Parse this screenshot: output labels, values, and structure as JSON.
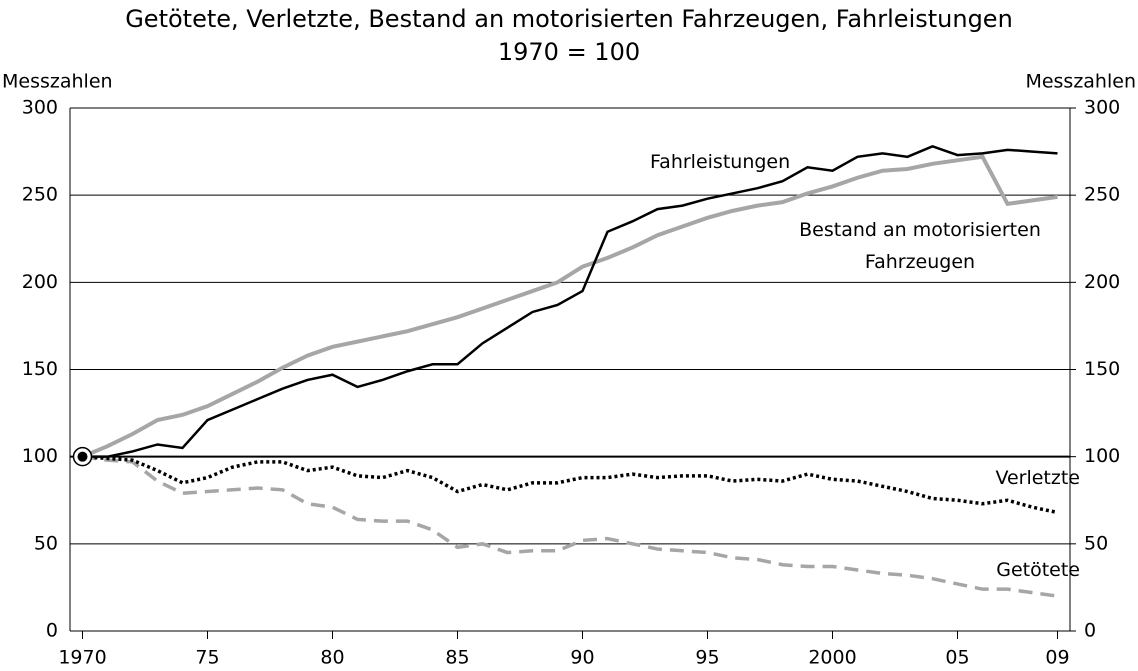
{
  "chart_data": {
    "type": "line",
    "title": "Getötete, Verletzte, Bestand an motorisierten Fahrzeugen, Fahrleistungen",
    "subtitle": "1970 = 100",
    "ylabel": "Messzahlen",
    "y2label": "Messzahlen",
    "x": [
      1970,
      1971,
      1972,
      1973,
      1974,
      1975,
      1976,
      1977,
      1978,
      1979,
      1980,
      1981,
      1982,
      1983,
      1984,
      1985,
      1986,
      1987,
      1988,
      1989,
      1990,
      1991,
      1992,
      1993,
      1994,
      1995,
      1996,
      1997,
      1998,
      1999,
      2000,
      2001,
      2002,
      2003,
      2004,
      2005,
      2006,
      2007,
      2008,
      2009
    ],
    "xlim": [
      1969.5,
      2009.5
    ],
    "xticks": [
      1970,
      {
        "value": 1975,
        "label": "75"
      },
      {
        "value": 1980,
        "label": "80"
      },
      {
        "value": 1985,
        "label": "85"
      },
      {
        "value": 1990,
        "label": "90"
      },
      {
        "value": 1995,
        "label": "95"
      },
      2000,
      {
        "value": 2005,
        "label": "05"
      },
      {
        "value": 2009,
        "label": "09"
      }
    ],
    "ylim": [
      0,
      300
    ],
    "yticks": [
      0,
      50,
      100,
      150,
      200,
      250,
      300
    ],
    "y2lim": [
      0,
      300
    ],
    "y2ticks": [
      0,
      50,
      100,
      150,
      200,
      250,
      300
    ],
    "grid": true,
    "series": [
      {
        "name": "Fahrleistungen",
        "color": "#000000",
        "style": "solid",
        "width": 2.5,
        "values": [
          100,
          100,
          103,
          107,
          105,
          121,
          127,
          133,
          139,
          144,
          147,
          140,
          144,
          149,
          153,
          153,
          165,
          174,
          183,
          187,
          195,
          229,
          235,
          242,
          244,
          248,
          251,
          254,
          258,
          266,
          264,
          272,
          274,
          272,
          278,
          273,
          274,
          276,
          275,
          274
        ]
      },
      {
        "name": "Bestand an motorisierten Fahrzeugen",
        "color": "#a6a6a6",
        "style": "solid",
        "width": 4,
        "values": [
          100,
          106,
          113,
          121,
          124,
          129,
          136,
          143,
          151,
          158,
          163,
          166,
          169,
          172,
          176,
          180,
          185,
          190,
          195,
          200,
          209,
          214,
          220,
          227,
          232,
          237,
          241,
          244,
          246,
          251,
          255,
          260,
          264,
          265,
          268,
          270,
          272,
          245,
          247,
          249
        ]
      },
      {
        "name": "Verletzte",
        "color": "#000000",
        "style": "dotted",
        "width": 3.5,
        "values": [
          100,
          99,
          98,
          92,
          85,
          88,
          94,
          97,
          97,
          92,
          94,
          89,
          88,
          92,
          88,
          80,
          84,
          81,
          85,
          85,
          88,
          88,
          90,
          88,
          89,
          89,
          86,
          87,
          86,
          90,
          87,
          86,
          83,
          80,
          76,
          75,
          73,
          75,
          71,
          68
        ]
      },
      {
        "name": "Getötete",
        "color": "#a6a6a6",
        "style": "dashed",
        "width": 3.5,
        "values": [
          100,
          98,
          97,
          86,
          79,
          80,
          81,
          82,
          81,
          73,
          71,
          64,
          63,
          63,
          58,
          48,
          50,
          45,
          46,
          46,
          52,
          53,
          50,
          47,
          46,
          45,
          42,
          41,
          38,
          37,
          37,
          35,
          33,
          32,
          30,
          27,
          24,
          24,
          22,
          20
        ]
      }
    ]
  }
}
